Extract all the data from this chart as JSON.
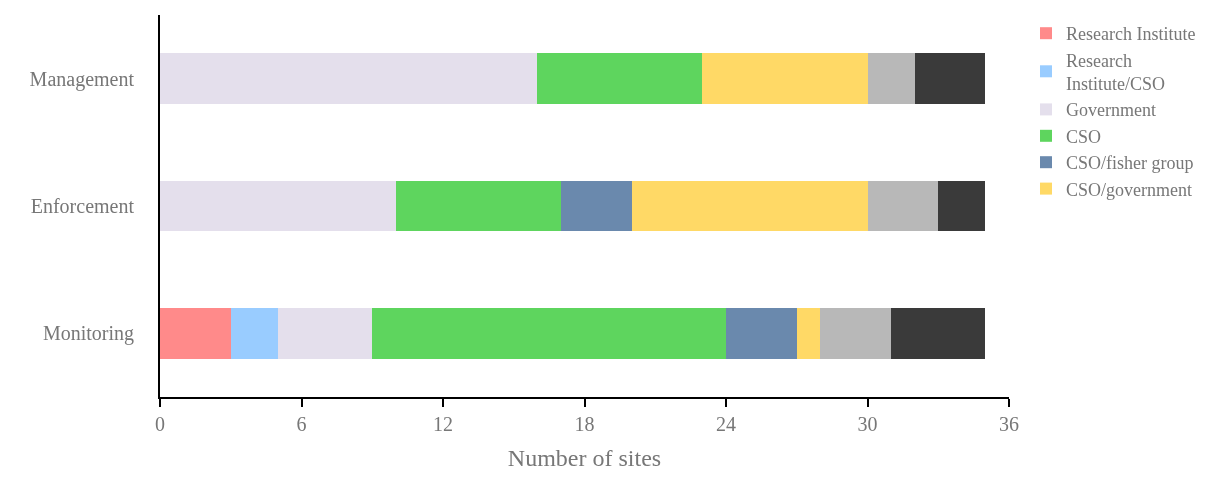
{
  "chart_data": {
    "type": "bar",
    "orientation": "horizontal",
    "stacked": true,
    "xlabel": "Number of sites",
    "categories": [
      "Management",
      "Enforcement",
      "Monitoring"
    ],
    "series": [
      {
        "name": "Research Institute",
        "color": "#ff8a8a",
        "values": [
          null,
          null,
          3
        ]
      },
      {
        "name": "Research Institute/CSO",
        "color": "#99ccff",
        "values": [
          null,
          null,
          2
        ]
      },
      {
        "name": "Government",
        "color": "#e4dfec",
        "values": [
          16,
          10,
          4
        ]
      },
      {
        "name": "CSO",
        "color": "#5ed55e",
        "values": [
          7,
          7,
          15
        ]
      },
      {
        "name": "CSO/fisher group",
        "color": "#6a89ad",
        "values": [
          null,
          3,
          3
        ]
      },
      {
        "name": "CSO/government",
        "color": "#ffd966",
        "values": [
          7,
          10,
          1
        ]
      },
      {
        "color": "#b8b8b8",
        "values": [
          2,
          3,
          3
        ]
      },
      {
        "color": "#3a3a3a",
        "values": [
          3,
          2,
          4
        ]
      }
    ],
    "xlim": [
      0,
      36
    ],
    "xticks": [
      0,
      6,
      12,
      18,
      24,
      30,
      36
    ],
    "legend": "right"
  }
}
